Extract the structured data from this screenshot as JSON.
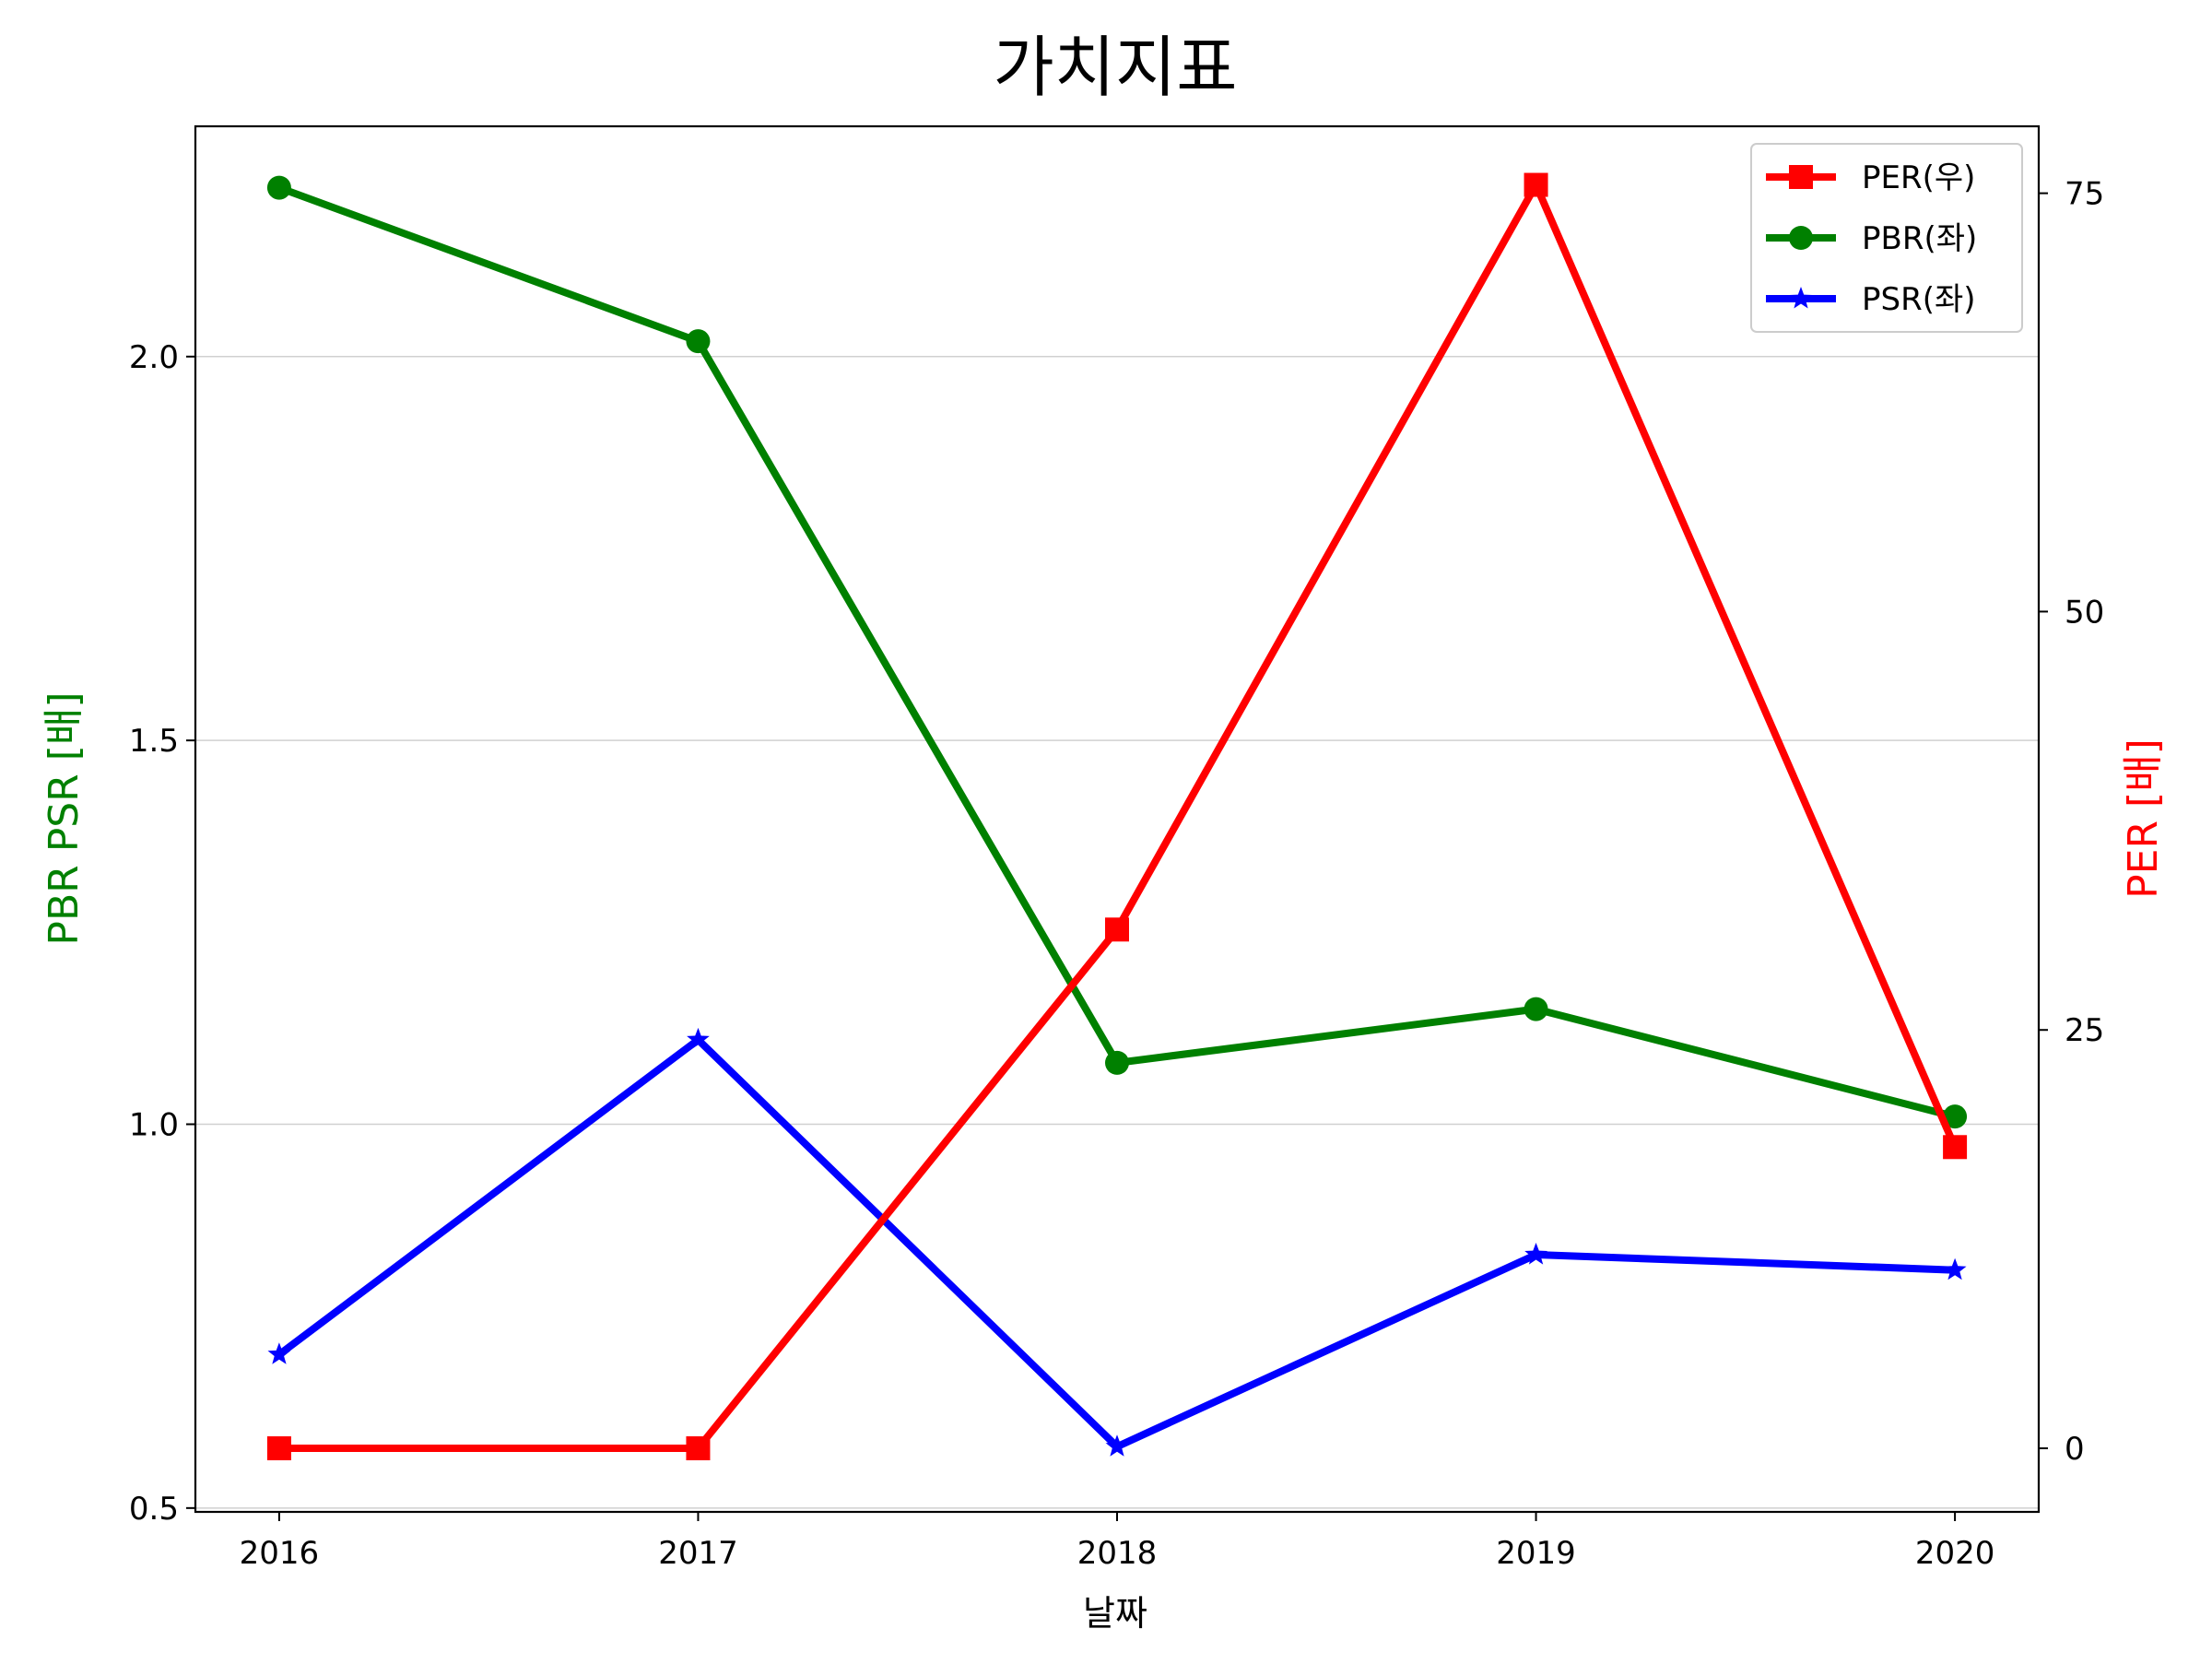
{
  "chart_data": {
    "type": "line",
    "title": "가치지표",
    "xlabel": "날짜",
    "ylabel_left": "PBR PSR [배]",
    "ylabel_right": "PER [배]",
    "x": [
      "2016",
      "2017",
      "2018",
      "2019",
      "2020"
    ],
    "xlim": [
      2015.8,
      2020.2
    ],
    "ylim_left": [
      0.495,
      2.3
    ],
    "ylim_right": [
      -3.8,
      79.0
    ],
    "yticks_left": [
      "0.5",
      "1.0",
      "1.5",
      "2.0"
    ],
    "yticks_right": [
      "0",
      "25",
      "50",
      "75"
    ],
    "grid": "horizontal (left axis)",
    "legend_position": "top-right",
    "series": [
      {
        "name": "PER(우)",
        "axis": "right",
        "color": "#ff0000",
        "marker": "square",
        "values": [
          0,
          0,
          31.0,
          75.5,
          18.0
        ]
      },
      {
        "name": "PBR(좌)",
        "axis": "left",
        "color": "#008000",
        "marker": "circle",
        "values": [
          2.22,
          2.02,
          1.08,
          1.15,
          1.01
        ]
      },
      {
        "name": "PSR(좌)",
        "axis": "left",
        "color": "#0000ff",
        "marker": "star",
        "values": [
          0.7,
          1.11,
          0.58,
          0.83,
          0.81
        ]
      }
    ]
  }
}
